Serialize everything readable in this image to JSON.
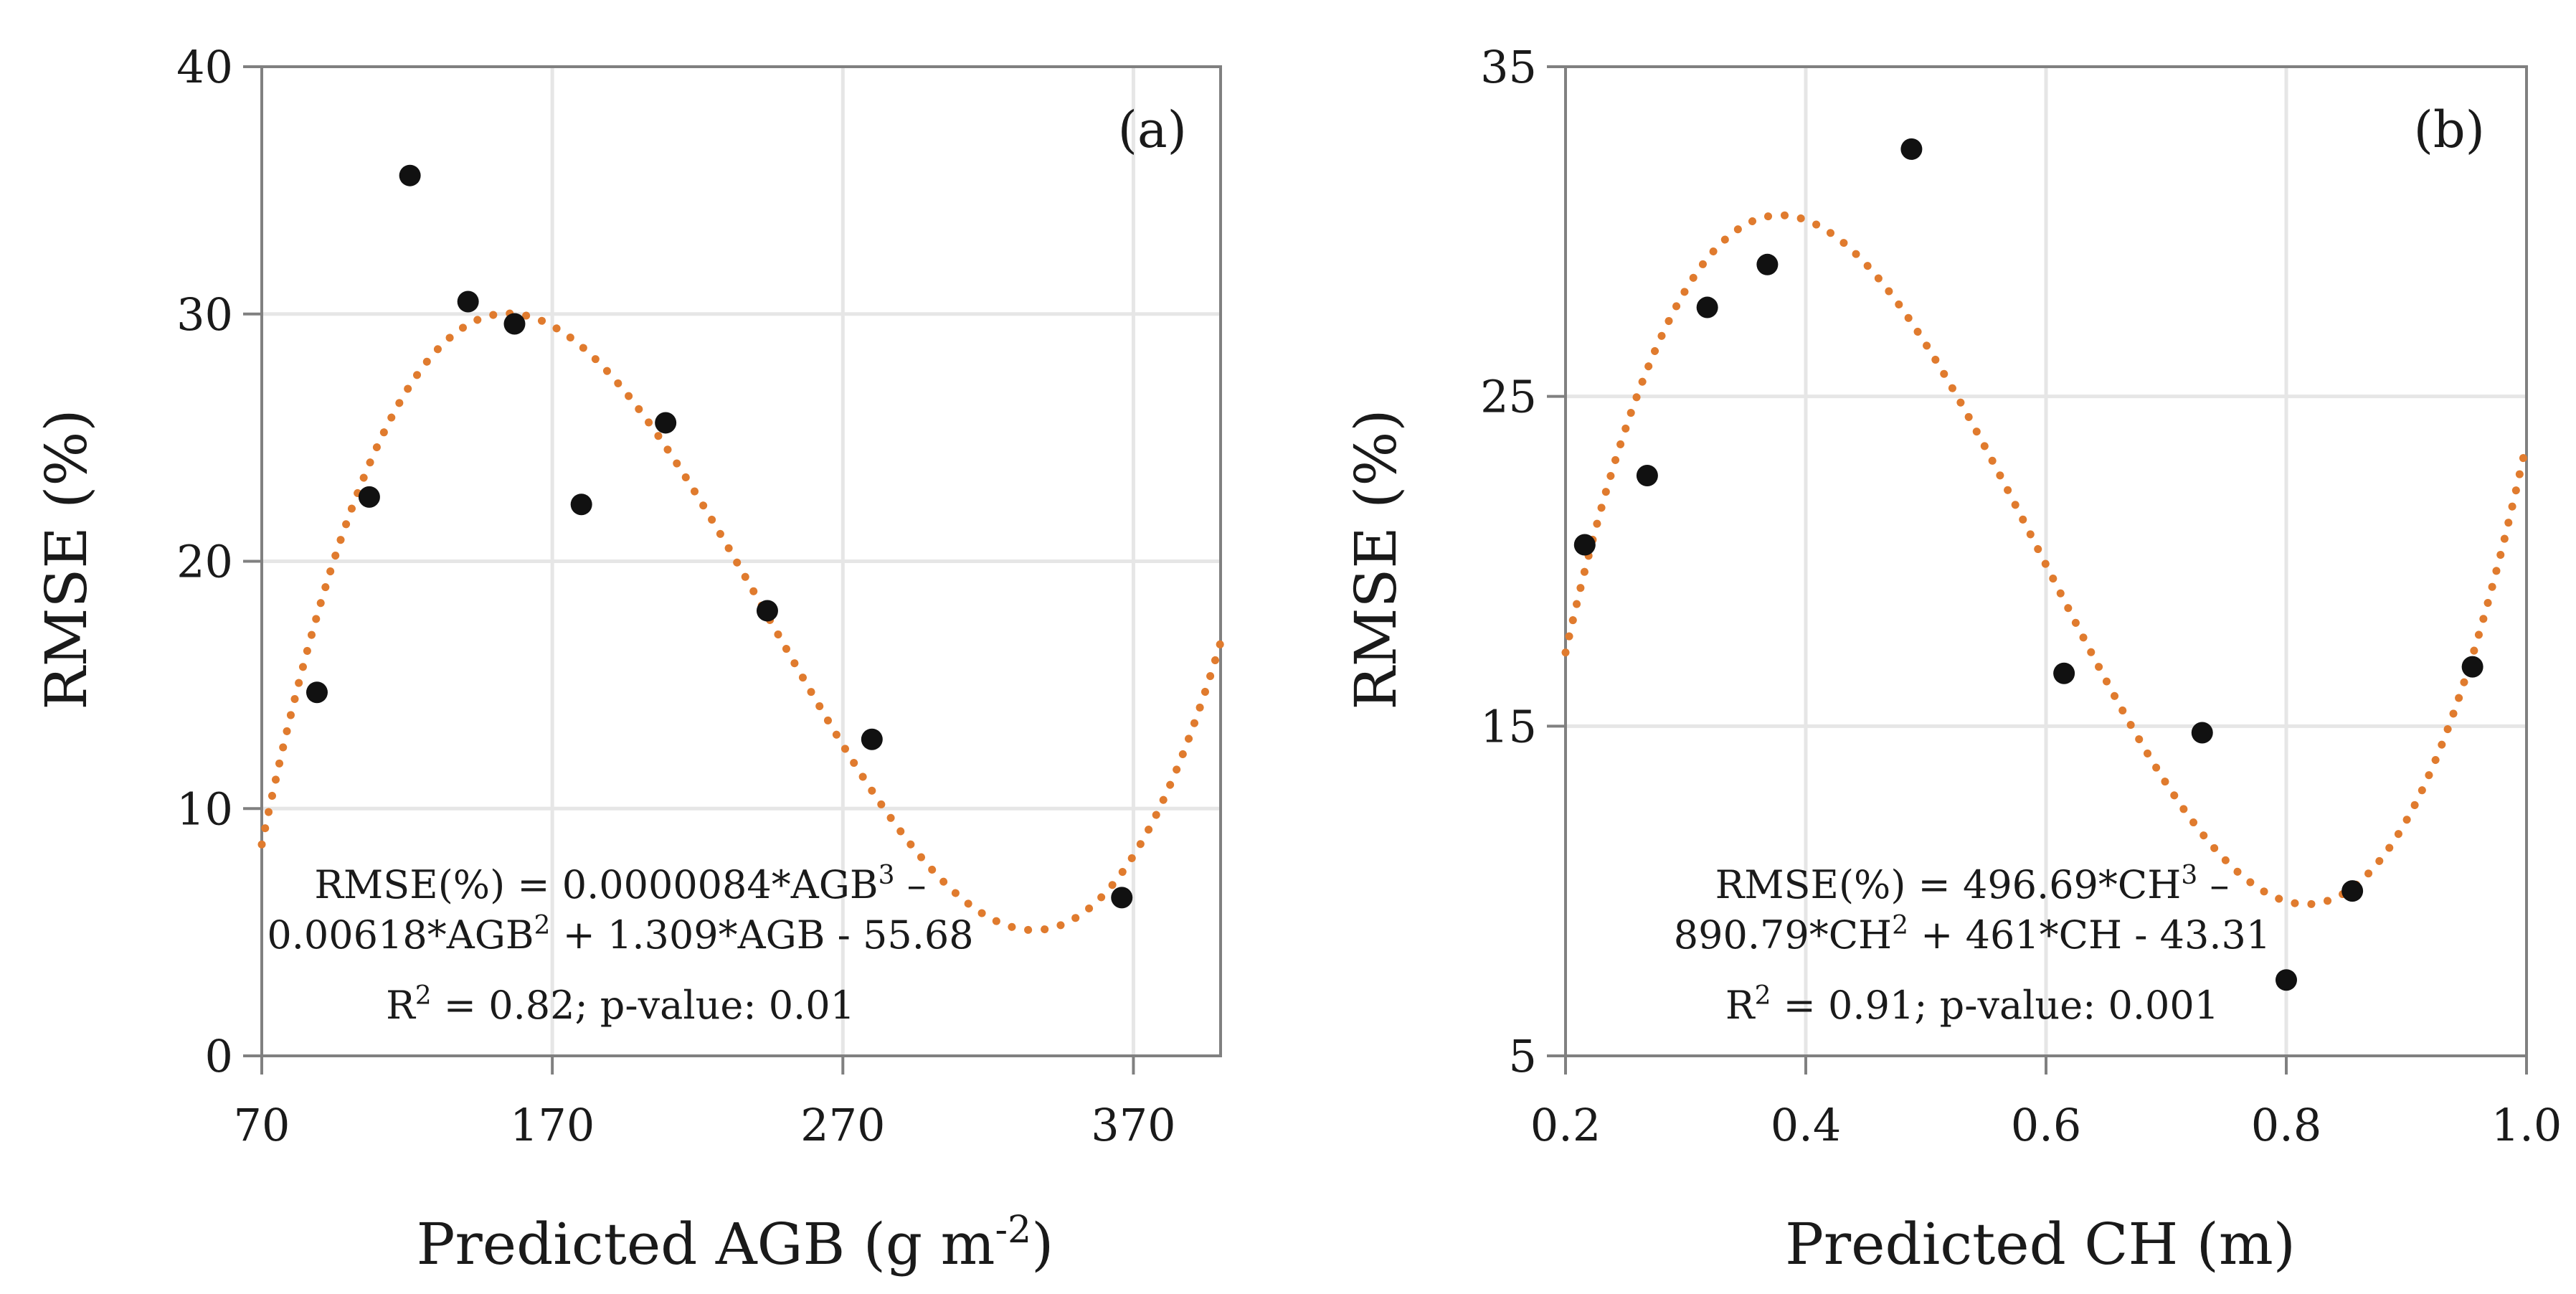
{
  "chart_data": [
    {
      "type": "scatter",
      "panel_label": "(a)",
      "xlabel": "Predicted AGB (g m",
      "xlabel_sup": "-2",
      "xlabel_end": ")",
      "ylabel": "RMSE (%)",
      "xlim": [
        70,
        400
      ],
      "ylim": [
        0,
        40
      ],
      "xticks": [
        70,
        170,
        270,
        370
      ],
      "yticks": [
        0,
        10,
        20,
        30,
        40
      ],
      "grid": true,
      "points": [
        {
          "x": 89,
          "y": 14.7
        },
        {
          "x": 107,
          "y": 22.6
        },
        {
          "x": 121,
          "y": 35.6
        },
        {
          "x": 141,
          "y": 30.5
        },
        {
          "x": 157,
          "y": 29.6
        },
        {
          "x": 180,
          "y": 22.3
        },
        {
          "x": 209,
          "y": 25.6
        },
        {
          "x": 244,
          "y": 18.0
        },
        {
          "x": 280,
          "y": 12.8
        },
        {
          "x": 366,
          "y": 6.4
        }
      ],
      "fit": {
        "type": "cubic",
        "coefficients": [
          8.4e-06,
          -0.00618,
          1.309,
          -55.68
        ],
        "color": "#e07b2e"
      },
      "equation_line1_pre": "RMSE(%) = 0.0000084*AGB",
      "equation_line1_sup": "3",
      "equation_line1_post": " –",
      "equation_line2_pre": "0.00618*AGB",
      "equation_line2_sup": "2",
      "equation_line2_post": " + 1.309*AGB - 55.68",
      "stats_pre": "R",
      "stats_sup": "2",
      "stats_post": " = 0.82; p-value: 0.01"
    },
    {
      "type": "scatter",
      "panel_label": "(b)",
      "xlabel": "Predicted CH (m)",
      "xlabel_sup": "",
      "xlabel_end": "",
      "ylabel": "RMSE (%)",
      "xlim": [
        0.2,
        1.0
      ],
      "ylim": [
        5,
        35
      ],
      "xticks": [
        0.2,
        0.4,
        0.6,
        0.8,
        1.0
      ],
      "xtick_labels": [
        "0.2",
        "0.4",
        "0.6",
        "0.8",
        "1.0"
      ],
      "yticks": [
        5,
        15,
        25,
        35
      ],
      "grid": true,
      "points": [
        {
          "x": 0.216,
          "y": 20.5
        },
        {
          "x": 0.268,
          "y": 22.6
        },
        {
          "x": 0.318,
          "y": 27.7
        },
        {
          "x": 0.368,
          "y": 29.0
        },
        {
          "x": 0.488,
          "y": 32.5
        },
        {
          "x": 0.615,
          "y": 16.6
        },
        {
          "x": 0.73,
          "y": 14.8
        },
        {
          "x": 0.8,
          "y": 7.3
        },
        {
          "x": 0.855,
          "y": 10.0
        },
        {
          "x": 0.955,
          "y": 16.8
        }
      ],
      "fit": {
        "type": "cubic",
        "coefficients": [
          496.69,
          -890.79,
          461,
          -43.31
        ],
        "color": "#e07b2e"
      },
      "equation_line1_pre": "RMSE(%) = 496.69*CH",
      "equation_line1_sup": "3",
      "equation_line1_post": " –",
      "equation_line2_pre": "890.79*CH",
      "equation_line2_sup": "2",
      "equation_line2_post": " + 461*CH - 43.31",
      "stats_pre": "R",
      "stats_sup": "2",
      "stats_post": " = 0.91; p-value: 0.001"
    }
  ]
}
